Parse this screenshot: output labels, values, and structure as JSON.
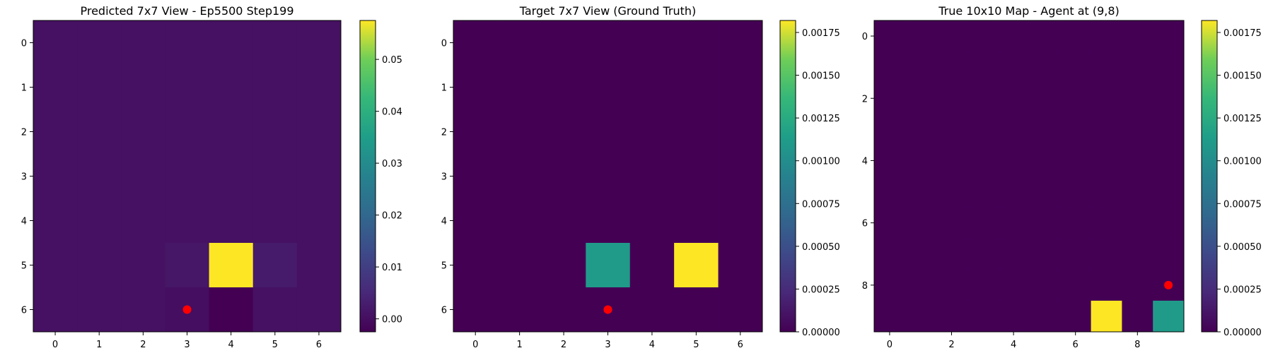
{
  "chart_data": [
    {
      "type": "heatmap",
      "title": "Predicted 7x7 View - Ep5500 Step199",
      "rows": 7,
      "cols": 7,
      "x_ticks": [
        0,
        1,
        2,
        3,
        4,
        5,
        6
      ],
      "y_ticks": [
        0,
        1,
        2,
        3,
        4,
        5,
        6
      ],
      "values": [
        [
          0.0005,
          0.0005,
          0.0005,
          0.0005,
          0.0005,
          0.0005,
          0.0005
        ],
        [
          0.0005,
          0.0005,
          0.0005,
          0.0005,
          0.0005,
          0.0005,
          0.0005
        ],
        [
          0.0005,
          0.0005,
          0.0005,
          0.0005,
          0.0005,
          0.0005,
          0.0005
        ],
        [
          0.0005,
          0.0005,
          0.0005,
          0.0005,
          0.0005,
          0.0005,
          0.0005
        ],
        [
          0.0005,
          0.0005,
          0.0005,
          0.0005,
          0.0005,
          0.0005,
          0.0005
        ],
        [
          0.0005,
          0.0005,
          0.0005,
          0.0015,
          0.0575,
          0.0025,
          0.0005
        ],
        [
          0.0005,
          0.0005,
          0.0005,
          0.0,
          -0.0025,
          0.0005,
          0.0005
        ]
      ],
      "vmin": -0.0025,
      "vmax": 0.0575,
      "colorbar_ticks": [
        0.0,
        0.01,
        0.02,
        0.03,
        0.04,
        0.05
      ],
      "colorbar_tick_labels": [
        "0.00",
        "0.01",
        "0.02",
        "0.03",
        "0.04",
        "0.05"
      ],
      "marker": {
        "x": 3,
        "y": 6,
        "color": "#ff0000"
      }
    },
    {
      "type": "heatmap",
      "title": "Target 7x7 View (Ground Truth)",
      "rows": 7,
      "cols": 7,
      "x_ticks": [
        0,
        1,
        2,
        3,
        4,
        5,
        6
      ],
      "y_ticks": [
        0,
        1,
        2,
        3,
        4,
        5,
        6
      ],
      "values": [
        [
          0,
          0,
          0,
          0,
          0,
          0,
          0
        ],
        [
          0,
          0,
          0,
          0,
          0,
          0,
          0
        ],
        [
          0,
          0,
          0,
          0,
          0,
          0,
          0
        ],
        [
          0,
          0,
          0,
          0,
          0,
          0,
          0
        ],
        [
          0,
          0,
          0,
          0,
          0,
          0,
          0
        ],
        [
          0,
          0,
          0,
          0.00111,
          0,
          0.00182,
          0
        ],
        [
          0,
          0,
          0,
          0,
          0,
          0,
          0
        ]
      ],
      "vmin": 0,
      "vmax": 0.00182,
      "colorbar_ticks": [
        0,
        0.00025,
        0.0005,
        0.00075,
        0.001,
        0.00125,
        0.0015,
        0.00175
      ],
      "colorbar_tick_labels": [
        "0.00000",
        "0.00025",
        "0.00050",
        "0.00075",
        "0.00100",
        "0.00125",
        "0.00150",
        "0.00175"
      ],
      "marker": {
        "x": 3,
        "y": 6,
        "color": "#ff0000"
      }
    },
    {
      "type": "heatmap",
      "title": "True 10x10 Map - Agent at (9,8)",
      "rows": 10,
      "cols": 10,
      "x_ticks": [
        0,
        2,
        4,
        6,
        8
      ],
      "y_ticks": [
        0,
        2,
        4,
        6,
        8
      ],
      "values": [
        [
          0,
          0,
          0,
          0,
          0,
          0,
          0,
          0,
          0,
          0
        ],
        [
          0,
          0,
          0,
          0,
          0,
          0,
          0,
          0,
          0,
          0
        ],
        [
          0,
          0,
          0,
          0,
          0,
          0,
          0,
          0,
          0,
          0
        ],
        [
          0,
          0,
          0,
          0,
          0,
          0,
          0,
          0,
          0,
          0
        ],
        [
          0,
          0,
          0,
          0,
          0,
          0,
          0,
          0,
          0,
          0
        ],
        [
          0,
          0,
          0,
          0,
          0,
          0,
          0,
          0,
          0,
          0
        ],
        [
          0,
          0,
          0,
          0,
          0,
          0,
          0,
          0,
          0,
          0
        ],
        [
          0,
          0,
          0,
          0,
          0,
          0,
          0,
          0,
          0,
          0
        ],
        [
          0,
          0,
          0,
          0,
          0,
          0,
          0,
          0,
          0,
          0
        ],
        [
          0,
          0,
          0,
          0,
          0,
          0,
          0,
          0.00182,
          0,
          0.00111
        ]
      ],
      "vmin": 0,
      "vmax": 0.00182,
      "colorbar_ticks": [
        0,
        0.00025,
        0.0005,
        0.00075,
        0.001,
        0.00125,
        0.0015,
        0.00175
      ],
      "colorbar_tick_labels": [
        "0.00000",
        "0.00025",
        "0.00050",
        "0.00075",
        "0.00100",
        "0.00125",
        "0.00150",
        "0.00175"
      ],
      "marker": {
        "x": 9,
        "y": 8,
        "color": "#ff0000"
      }
    }
  ]
}
